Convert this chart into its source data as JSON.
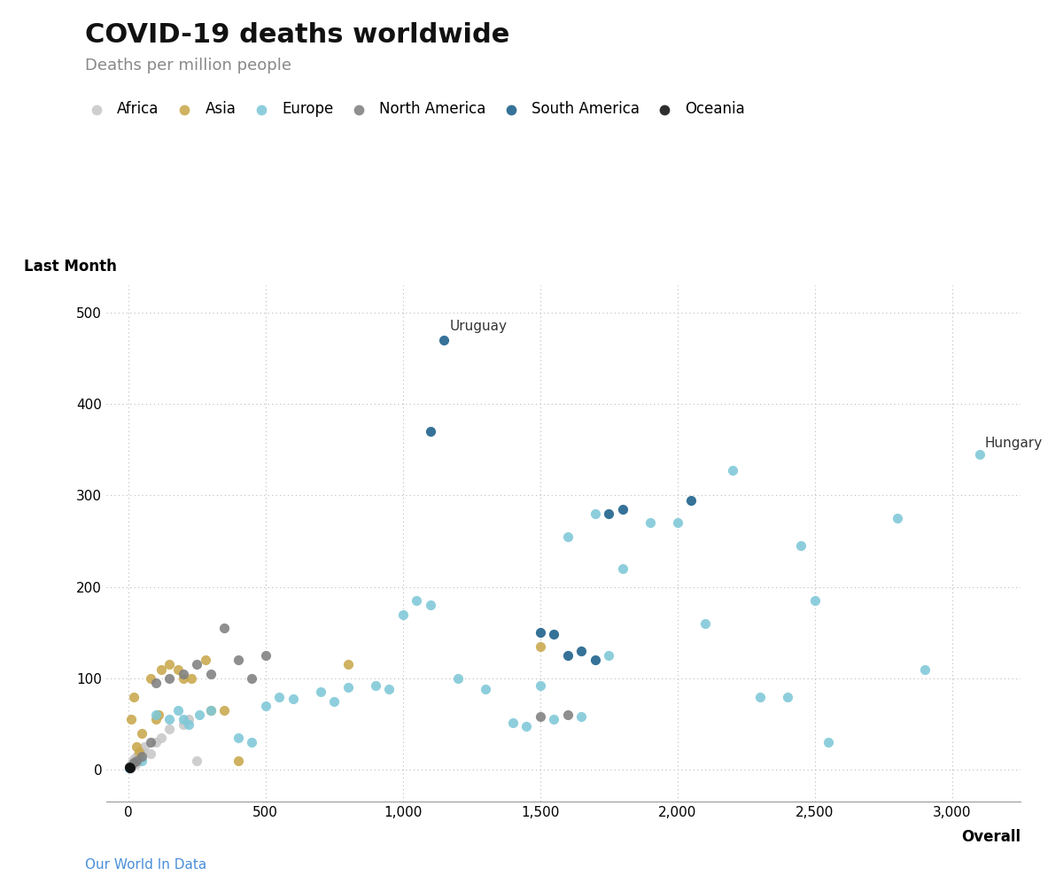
{
  "title": "COVID-19 deaths worldwide",
  "subtitle": "Deaths per million people",
  "xlabel": "Overall",
  "ylabel": "Last Month",
  "source": "Our World In Data",
  "xlim": [
    -80,
    3250
  ],
  "ylim": [
    -35,
    530
  ],
  "xticks": [
    0,
    500,
    1000,
    1500,
    2000,
    2500,
    3000
  ],
  "yticks": [
    0,
    100,
    200,
    300,
    400,
    500
  ],
  "colors": {
    "Africa": "#c8c8c8",
    "Asia": "#c9a84c",
    "Europe": "#7ec8d8",
    "North America": "#808080",
    "South America": "#1a5f8a",
    "Oceania": "#111111"
  },
  "points": [
    {
      "continent": "Africa",
      "overall": 5,
      "last_month": 3
    },
    {
      "continent": "Africa",
      "overall": 10,
      "last_month": 5
    },
    {
      "continent": "Africa",
      "overall": 15,
      "last_month": 8
    },
    {
      "continent": "Africa",
      "overall": 20,
      "last_month": 12
    },
    {
      "continent": "Africa",
      "overall": 25,
      "last_month": 6
    },
    {
      "continent": "Africa",
      "overall": 30,
      "last_month": 15
    },
    {
      "continent": "Africa",
      "overall": 50,
      "last_month": 20
    },
    {
      "continent": "Africa",
      "overall": 60,
      "last_month": 25
    },
    {
      "continent": "Africa",
      "overall": 80,
      "last_month": 18
    },
    {
      "continent": "Africa",
      "overall": 100,
      "last_month": 30
    },
    {
      "continent": "Africa",
      "overall": 120,
      "last_month": 35
    },
    {
      "continent": "Africa",
      "overall": 150,
      "last_month": 45
    },
    {
      "continent": "Africa",
      "overall": 200,
      "last_month": 50
    },
    {
      "continent": "Africa",
      "overall": 220,
      "last_month": 55
    },
    {
      "continent": "Africa",
      "overall": 250,
      "last_month": 10
    },
    {
      "continent": "Asia",
      "overall": 10,
      "last_month": 55
    },
    {
      "continent": "Asia",
      "overall": 20,
      "last_month": 80
    },
    {
      "continent": "Asia",
      "overall": 30,
      "last_month": 25
    },
    {
      "continent": "Asia",
      "overall": 40,
      "last_month": 20
    },
    {
      "continent": "Asia",
      "overall": 50,
      "last_month": 40
    },
    {
      "continent": "Asia",
      "overall": 80,
      "last_month": 100
    },
    {
      "continent": "Asia",
      "overall": 100,
      "last_month": 55
    },
    {
      "continent": "Asia",
      "overall": 110,
      "last_month": 60
    },
    {
      "continent": "Asia",
      "overall": 120,
      "last_month": 110
    },
    {
      "continent": "Asia",
      "overall": 150,
      "last_month": 115
    },
    {
      "continent": "Asia",
      "overall": 180,
      "last_month": 110
    },
    {
      "continent": "Asia",
      "overall": 200,
      "last_month": 100
    },
    {
      "continent": "Asia",
      "overall": 230,
      "last_month": 100
    },
    {
      "continent": "Asia",
      "overall": 280,
      "last_month": 120
    },
    {
      "continent": "Asia",
      "overall": 300,
      "last_month": 65
    },
    {
      "continent": "Asia",
      "overall": 350,
      "last_month": 65
    },
    {
      "continent": "Asia",
      "overall": 400,
      "last_month": 10
    },
    {
      "continent": "Asia",
      "overall": 800,
      "last_month": 115
    },
    {
      "continent": "Asia",
      "overall": 1500,
      "last_month": 135
    },
    {
      "continent": "Europe",
      "overall": 50,
      "last_month": 10
    },
    {
      "continent": "Europe",
      "overall": 100,
      "last_month": 60
    },
    {
      "continent": "Europe",
      "overall": 150,
      "last_month": 55
    },
    {
      "continent": "Europe",
      "overall": 180,
      "last_month": 65
    },
    {
      "continent": "Europe",
      "overall": 200,
      "last_month": 55
    },
    {
      "continent": "Europe",
      "overall": 220,
      "last_month": 50
    },
    {
      "continent": "Europe",
      "overall": 260,
      "last_month": 60
    },
    {
      "continent": "Europe",
      "overall": 300,
      "last_month": 65
    },
    {
      "continent": "Europe",
      "overall": 400,
      "last_month": 35
    },
    {
      "continent": "Europe",
      "overall": 450,
      "last_month": 30
    },
    {
      "continent": "Europe",
      "overall": 500,
      "last_month": 70
    },
    {
      "continent": "Europe",
      "overall": 550,
      "last_month": 80
    },
    {
      "continent": "Europe",
      "overall": 600,
      "last_month": 78
    },
    {
      "continent": "Europe",
      "overall": 700,
      "last_month": 85
    },
    {
      "continent": "Europe",
      "overall": 750,
      "last_month": 75
    },
    {
      "continent": "Europe",
      "overall": 800,
      "last_month": 90
    },
    {
      "continent": "Europe",
      "overall": 900,
      "last_month": 92
    },
    {
      "continent": "Europe",
      "overall": 950,
      "last_month": 88
    },
    {
      "continent": "Europe",
      "overall": 1000,
      "last_month": 170
    },
    {
      "continent": "Europe",
      "overall": 1050,
      "last_month": 185
    },
    {
      "continent": "Europe",
      "overall": 1100,
      "last_month": 180
    },
    {
      "continent": "Europe",
      "overall": 1200,
      "last_month": 100
    },
    {
      "continent": "Europe",
      "overall": 1300,
      "last_month": 88
    },
    {
      "continent": "Europe",
      "overall": 1400,
      "last_month": 52
    },
    {
      "continent": "Europe",
      "overall": 1450,
      "last_month": 48
    },
    {
      "continent": "Europe",
      "overall": 1500,
      "last_month": 92
    },
    {
      "continent": "Europe",
      "overall": 1550,
      "last_month": 55
    },
    {
      "continent": "Europe",
      "overall": 1600,
      "last_month": 255
    },
    {
      "continent": "Europe",
      "overall": 1650,
      "last_month": 58
    },
    {
      "continent": "Europe",
      "overall": 1700,
      "last_month": 280
    },
    {
      "continent": "Europe",
      "overall": 1750,
      "last_month": 125
    },
    {
      "continent": "Europe",
      "overall": 1800,
      "last_month": 220
    },
    {
      "continent": "Europe",
      "overall": 1900,
      "last_month": 270
    },
    {
      "continent": "Europe",
      "overall": 2000,
      "last_month": 270
    },
    {
      "continent": "Europe",
      "overall": 2100,
      "last_month": 160
    },
    {
      "continent": "Europe",
      "overall": 2200,
      "last_month": 328
    },
    {
      "continent": "Europe",
      "overall": 2300,
      "last_month": 80
    },
    {
      "continent": "Europe",
      "overall": 2400,
      "last_month": 80
    },
    {
      "continent": "Europe",
      "overall": 2450,
      "last_month": 245
    },
    {
      "continent": "Europe",
      "overall": 2500,
      "last_month": 185
    },
    {
      "continent": "Europe",
      "overall": 2550,
      "last_month": 30
    },
    {
      "continent": "Europe",
      "overall": 2800,
      "last_month": 275
    },
    {
      "continent": "Europe",
      "overall": 2900,
      "last_month": 110
    },
    {
      "continent": "Europe",
      "overall": 3100,
      "last_month": 345
    },
    {
      "continent": "North America",
      "overall": 20,
      "last_month": 8
    },
    {
      "continent": "North America",
      "overall": 30,
      "last_month": 10
    },
    {
      "continent": "North America",
      "overall": 50,
      "last_month": 15
    },
    {
      "continent": "North America",
      "overall": 80,
      "last_month": 30
    },
    {
      "continent": "North America",
      "overall": 100,
      "last_month": 95
    },
    {
      "continent": "North America",
      "overall": 150,
      "last_month": 100
    },
    {
      "continent": "North America",
      "overall": 200,
      "last_month": 105
    },
    {
      "continent": "North America",
      "overall": 250,
      "last_month": 115
    },
    {
      "continent": "North America",
      "overall": 300,
      "last_month": 105
    },
    {
      "continent": "North America",
      "overall": 350,
      "last_month": 155
    },
    {
      "continent": "North America",
      "overall": 400,
      "last_month": 120
    },
    {
      "continent": "North America",
      "overall": 450,
      "last_month": 100
    },
    {
      "continent": "North America",
      "overall": 500,
      "last_month": 125
    },
    {
      "continent": "North America",
      "overall": 1500,
      "last_month": 58
    },
    {
      "continent": "North America",
      "overall": 1600,
      "last_month": 60
    },
    {
      "continent": "South America",
      "overall": 5,
      "last_month": 2
    },
    {
      "continent": "South America",
      "overall": 1100,
      "last_month": 370
    },
    {
      "continent": "South America",
      "overall": 1150,
      "last_month": 470
    },
    {
      "continent": "South America",
      "overall": 1500,
      "last_month": 150
    },
    {
      "continent": "South America",
      "overall": 1550,
      "last_month": 148
    },
    {
      "continent": "South America",
      "overall": 1600,
      "last_month": 125
    },
    {
      "continent": "South America",
      "overall": 1650,
      "last_month": 130
    },
    {
      "continent": "South America",
      "overall": 1700,
      "last_month": 120
    },
    {
      "continent": "South America",
      "overall": 1750,
      "last_month": 280
    },
    {
      "continent": "South America",
      "overall": 1800,
      "last_month": 285
    },
    {
      "continent": "South America",
      "overall": 2050,
      "last_month": 295
    },
    {
      "continent": "Oceania",
      "overall": 5,
      "last_month": 3
    },
    {
      "continent": "Oceania",
      "overall": 8,
      "last_month": 2
    }
  ],
  "annotations": [
    {
      "text": "Uruguay",
      "overall": 1150,
      "last_month": 470,
      "xoffset": 20,
      "yoffset": 8
    },
    {
      "text": "Hungary",
      "overall": 3100,
      "last_month": 345,
      "xoffset": 18,
      "yoffset": 5
    }
  ],
  "legend_order": [
    "Africa",
    "Asia",
    "Europe",
    "North America",
    "South America",
    "Oceania"
  ],
  "background_color": "#ffffff",
  "grid_color": "#bbbbbb",
  "title_fontsize": 22,
  "subtitle_fontsize": 13,
  "axis_label_fontsize": 12,
  "tick_fontsize": 11,
  "legend_fontsize": 12,
  "annotation_fontsize": 11,
  "source_fontsize": 11,
  "source_color": "#4a90d9",
  "marker_size": 65
}
